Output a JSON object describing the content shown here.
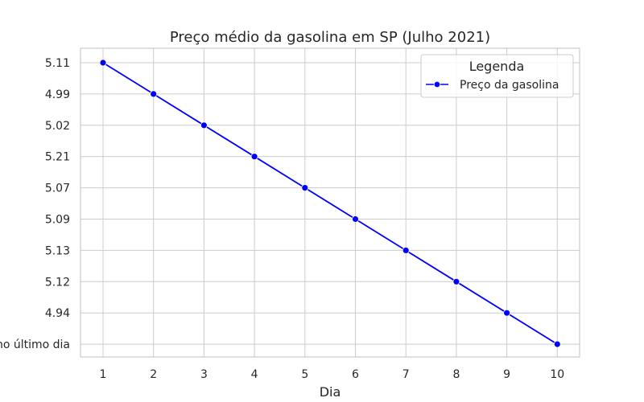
{
  "chart_data": {
    "type": "line",
    "title": "Preço médio da gasolina em SP (Julho 2021)",
    "xlabel": "Dia",
    "ylabel": "",
    "x": [
      1,
      2,
      3,
      4,
      5,
      6,
      7,
      8,
      9,
      10
    ],
    "y_categories": [
      "5.11",
      "4.99",
      "5.02",
      "5.21",
      "5.07",
      "5.09",
      "5.13",
      "5.12",
      "4.94",
      "Preço no último dia"
    ],
    "series": [
      {
        "name": "Preço da gasolina",
        "values": [
          "5.11",
          "4.99",
          "5.02",
          "5.21",
          "5.07",
          "5.09",
          "5.13",
          "5.12",
          "4.94",
          "Preço no último dia"
        ],
        "color": "#0000ff"
      }
    ],
    "legend": {
      "title": "Legenda",
      "placement": "top-right"
    },
    "grid": true,
    "colors": {
      "grid": "#cccccc",
      "spine": "#cccccc",
      "line": "#0000ff"
    }
  }
}
